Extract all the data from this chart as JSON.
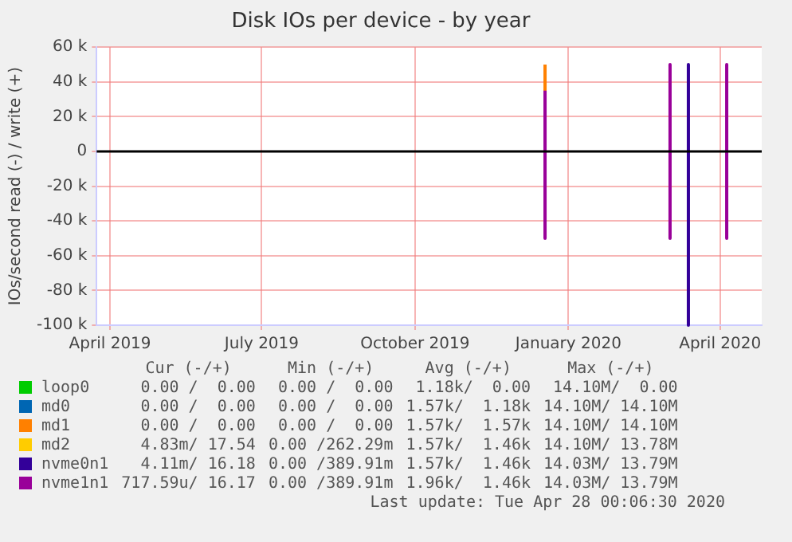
{
  "chart_data": {
    "type": "line",
    "title": "Disk IOs per device - by year",
    "ylabel": "IOs/second read (-) / write (+)",
    "xlim": [
      "2019-03-24",
      "2020-04-26"
    ],
    "xticks": [
      {
        "value": "2019-04-01",
        "label": "April 2019"
      },
      {
        "value": "2019-07-01",
        "label": "July 2019"
      },
      {
        "value": "2019-10-01",
        "label": "October 2019"
      },
      {
        "value": "2020-01-01",
        "label": "January 2020"
      },
      {
        "value": "2020-04-01",
        "label": "April 2020"
      }
    ],
    "ylim": [
      -100000,
      60000
    ],
    "yticks": [
      {
        "value": -100000,
        "label": "-100 k"
      },
      {
        "value": -80000,
        "label": "-80 k"
      },
      {
        "value": -60000,
        "label": "-60 k"
      },
      {
        "value": -40000,
        "label": "-40 k"
      },
      {
        "value": -20000,
        "label": "-20 k"
      },
      0,
      {
        "value": 20000,
        "label": "20 k"
      },
      {
        "value": 40000,
        "label": "40 k"
      },
      {
        "value": 60000,
        "label": "60 k"
      }
    ],
    "grid": true,
    "legend": "bottom",
    "marker": "none",
    "line_style": "solid",
    "ref_lines": [
      {
        "axis": "y",
        "value": 0,
        "color": "#000000"
      }
    ],
    "series": [
      {
        "name": "loop0",
        "color": "#00cc00"
      },
      {
        "name": "md0",
        "color": "#0066b3"
      },
      {
        "name": "md1",
        "color": "#ff8000",
        "x": [
          "2019-12-18",
          "2019-12-18"
        ],
        "values": [
          35000,
          50000
        ]
      },
      {
        "name": "md2",
        "color": "#ffcc00"
      },
      {
        "name": "nvme0n1",
        "color": "#330099",
        "x": [
          "2020-03-13",
          "2020-03-13"
        ],
        "values": [
          50000,
          -100000
        ]
      },
      {
        "name": "nvme1n1",
        "color": "#990099",
        "x": [
          "2019-12-18",
          "2019-12-18",
          null,
          "2020-03-02",
          "2020-03-02",
          null,
          "2020-04-05",
          "2020-04-05"
        ],
        "values": [
          35000,
          -50000,
          null,
          50000,
          -50000,
          null,
          50000,
          -50000
        ]
      }
    ],
    "annotations": [
      "Cur (-/+)",
      "Min (-/+)",
      "Avg (-/+)",
      "Max (-/+)",
      "0.00 /  0.00",
      "0.00 /  0.00",
      "1.18k/  0.00",
      "14.10M/  0.00",
      "0.00 /  0.00",
      "0.00 /  0.00",
      "1.57k/  1.18k",
      "14.10M/ 14.10M",
      "0.00 /  0.00",
      "0.00 /  0.00",
      "1.57k/  1.57k",
      "14.10M/ 14.10M",
      "4.83m/ 17.54",
      "0.00 /262.29m",
      "1.57k/  1.46k",
      "14.10M/ 13.78M",
      "4.11m/ 16.18",
      "0.00 /389.91m",
      "1.57k/  1.46k",
      "14.03M/ 13.79M",
      "717.59u/ 16.17",
      "0.00 /389.91m",
      "1.96k/  1.46k",
      "14.03M/ 13.79M",
      "Last update: Tue Apr 28 00:06:30 2020"
    ]
  }
}
